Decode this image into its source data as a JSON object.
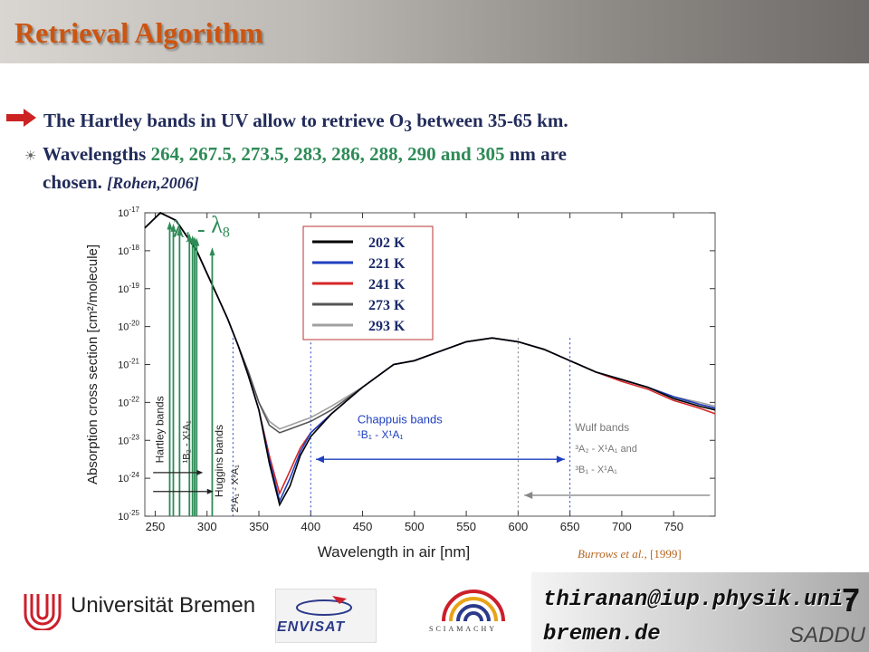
{
  "slide": {
    "title": "Retrieval Algorithm",
    "bullet1_pre": "The Hartley bands in UV allow to retrieve O",
    "bullet1_sub": "3",
    "bullet1_post": " between 35-65 km.",
    "bullet2_pre": "Wavelengths ",
    "bullet2_wavelengths": "264, 267.5, 273.5, 283, 286, 288, 290 and 305",
    "bullet2_post": "  nm are",
    "bullet3_text": "chosen. ",
    "bullet3_cite": "[Rohen,2006]",
    "credit_authors": "Burrows et al.,",
    "credit_year": "[1999]"
  },
  "footer": {
    "university": "Universität Bremen",
    "envisat": "ENVISAT",
    "sciamachy": "SCIAMACHY",
    "email_line1": "thiranan@iup.physik.uni-",
    "email_line2": "bremen.de",
    "page_number": "7",
    "tag": "SADDU"
  },
  "colors": {
    "title": "#cc5511",
    "text": "#222c5a",
    "wavelengths": "#2e8b57",
    "selection_arrows": "#2e8b57",
    "band_arrows": "#1f3fbf"
  },
  "chart_data": {
    "type": "line",
    "xlabel": "Wavelength in air [nm]",
    "ylabel": "Absorption cross section [cm²/molecule]",
    "xlim": [
      240,
      790
    ],
    "ylim_log10": [
      -25,
      -17
    ],
    "y_scale": "log",
    "x_ticks": [
      250,
      300,
      350,
      400,
      450,
      500,
      550,
      600,
      650,
      700,
      750
    ],
    "y_tick_exponents": [
      -17,
      -18,
      -19,
      -20,
      -21,
      -22,
      -23,
      -24,
      -25
    ],
    "y_tick_base": "10",
    "grid": false,
    "legend_placement": "top-center",
    "selected_wavelengths": [
      264,
      267.5,
      273.5,
      283,
      286,
      288,
      290,
      305
    ],
    "selection_label": {
      "lambda": "λ",
      "first_index": "1",
      "dash": "- ",
      "last_index": "8"
    },
    "series": [
      {
        "name": "202 K",
        "color": "#000000",
        "x": [
          240,
          255,
          270,
          290,
          300,
          310,
          320,
          330,
          340,
          350,
          360,
          370,
          380,
          390,
          400,
          420,
          450,
          480,
          500,
          520,
          550,
          575,
          600,
          625,
          650,
          675,
          700,
          725,
          750,
          775,
          790
        ],
        "log10_y": [
          -17.4,
          -17.0,
          -17.2,
          -18.0,
          -18.6,
          -19.2,
          -19.8,
          -20.5,
          -21.3,
          -22.2,
          -23.6,
          -24.7,
          -24.2,
          -23.4,
          -22.9,
          -22.3,
          -21.6,
          -21.0,
          -20.9,
          -20.7,
          -20.4,
          -20.3,
          -20.4,
          -20.6,
          -20.9,
          -21.2,
          -21.4,
          -21.6,
          -21.9,
          -22.1,
          -22.2
        ]
      },
      {
        "name": "221 K",
        "color": "#1f3fbf",
        "x": [
          240,
          255,
          270,
          290,
          300,
          310,
          320,
          330,
          340,
          350,
          360,
          370,
          380,
          390,
          400,
          420,
          450,
          480,
          500,
          520,
          550,
          575,
          600,
          625,
          650,
          675,
          700,
          725,
          750,
          775,
          790
        ],
        "log10_y": [
          -17.4,
          -17.0,
          -17.2,
          -18.0,
          -18.6,
          -19.2,
          -19.8,
          -20.5,
          -21.3,
          -22.2,
          -23.5,
          -24.6,
          -24.0,
          -23.3,
          -22.8,
          -22.3,
          -21.6,
          -21.0,
          -20.9,
          -20.7,
          -20.4,
          -20.3,
          -20.4,
          -20.6,
          -20.9,
          -21.2,
          -21.4,
          -21.6,
          -21.85,
          -22.05,
          -22.15
        ]
      },
      {
        "name": "241 K",
        "color": "#d62728",
        "x": [
          240,
          255,
          270,
          290,
          300,
          310,
          320,
          330,
          340,
          350,
          360,
          370,
          380,
          390,
          400,
          420,
          450,
          480,
          500,
          520,
          550,
          575,
          600,
          625,
          650,
          675,
          700,
          725,
          750,
          775,
          790
        ],
        "log10_y": [
          -17.4,
          -17.0,
          -17.2,
          -18.0,
          -18.6,
          -19.2,
          -19.8,
          -20.5,
          -21.3,
          -22.2,
          -23.4,
          -24.4,
          -23.8,
          -23.2,
          -22.8,
          -22.3,
          -21.6,
          -21.0,
          -20.9,
          -20.7,
          -20.4,
          -20.3,
          -20.4,
          -20.6,
          -20.9,
          -21.2,
          -21.45,
          -21.65,
          -21.95,
          -22.15,
          -22.3
        ]
      },
      {
        "name": "273 K",
        "color": "#555555",
        "x": [
          240,
          255,
          270,
          290,
          300,
          310,
          320,
          330,
          340,
          350,
          360,
          370,
          380,
          390,
          400,
          420,
          450,
          480,
          500,
          520,
          550,
          575,
          600,
          625,
          650,
          675,
          700,
          725,
          750,
          775,
          790
        ],
        "log10_y": [
          -17.4,
          -17.0,
          -17.2,
          -18.0,
          -18.6,
          -19.2,
          -19.8,
          -20.5,
          -21.2,
          -22.0,
          -22.6,
          -22.8,
          -22.7,
          -22.6,
          -22.5,
          -22.2,
          -21.6,
          -21.0,
          -20.9,
          -20.7,
          -20.4,
          -20.3,
          -20.4,
          -20.6,
          -20.9,
          -21.2,
          -21.4,
          -21.6,
          -21.85,
          -22.05,
          -22.15
        ]
      },
      {
        "name": "293 K",
        "color": "#a0a0a0",
        "x": [
          240,
          255,
          270,
          290,
          300,
          310,
          320,
          330,
          340,
          350,
          360,
          370,
          380,
          390,
          400,
          420,
          450,
          480,
          500,
          520,
          550,
          575,
          600,
          625,
          650,
          675,
          700,
          725,
          750,
          775,
          790
        ],
        "log10_y": [
          -17.4,
          -17.0,
          -17.2,
          -18.0,
          -18.6,
          -19.2,
          -19.8,
          -20.5,
          -21.2,
          -22.0,
          -22.5,
          -22.7,
          -22.6,
          -22.5,
          -22.4,
          -22.1,
          -21.6,
          -21.0,
          -20.9,
          -20.7,
          -20.4,
          -20.3,
          -20.4,
          -20.6,
          -20.9,
          -21.2,
          -21.4,
          -21.6,
          -21.85,
          -22.0,
          -22.1
        ]
      }
    ],
    "annotations": {
      "hartley": "Hartley bands",
      "hartley_transition": "¹B₂ - X¹A₁",
      "huggins": "Huggins bands",
      "huggins_transition": "2¹A₁ - X¹A₁",
      "chappuis": "Chappuis bands",
      "chappuis_transition": "¹B₁ - X¹A₁",
      "wulf": "Wulf bands",
      "wulf_transition_1": "³A₂ - X¹A₁ and",
      "wulf_transition_2": "³B₁ - X¹A₁"
    },
    "band_markers_nm": [
      325,
      400,
      600,
      650
    ]
  }
}
